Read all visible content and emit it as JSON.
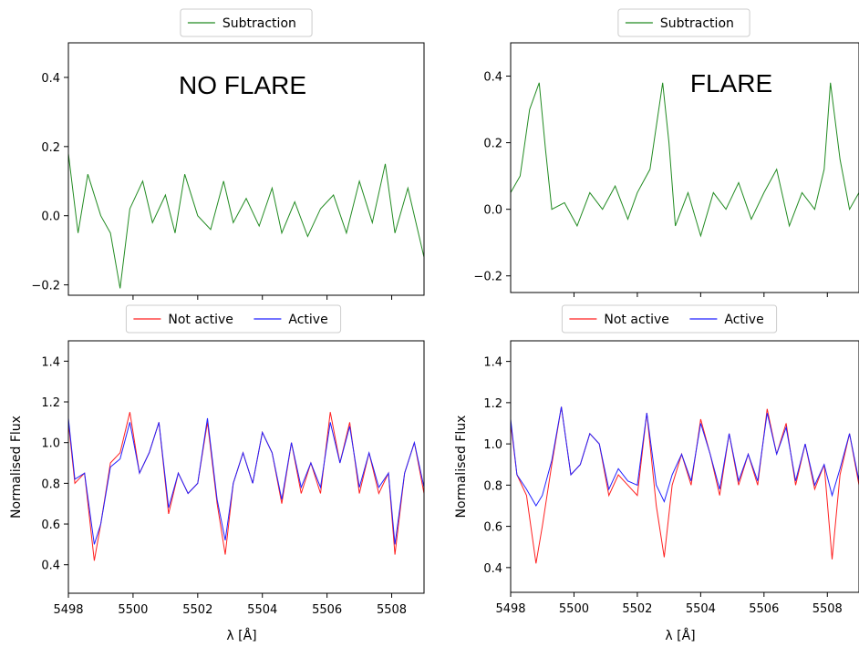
{
  "colors": {
    "subtraction": "#228B22",
    "not_active": "#ff2020",
    "active": "#2020ff"
  },
  "chart_data": [
    {
      "panel": "top-left",
      "type": "line",
      "annotation": "NO FLARE",
      "legend": [
        "Subtraction"
      ],
      "legend_placement": "top-center-outside",
      "xlim": [
        5498,
        5509
      ],
      "ylim": [
        -0.23,
        0.5
      ],
      "yticks": [
        -0.2,
        0.0,
        0.2,
        0.4
      ],
      "ytick_labels": [
        "−0.2",
        "0.0",
        "0.2",
        "0.4"
      ],
      "xticks": [
        5500,
        5502,
        5504,
        5506,
        5508
      ],
      "series": [
        {
          "name": "Subtraction",
          "color": "#228B22",
          "points": [
            [
              5498.0,
              0.18
            ],
            [
              5498.3,
              -0.05
            ],
            [
              5498.6,
              0.12
            ],
            [
              5499.0,
              0.0
            ],
            [
              5499.3,
              -0.05
            ],
            [
              5499.6,
              -0.21
            ],
            [
              5499.9,
              0.02
            ],
            [
              5500.3,
              0.1
            ],
            [
              5500.6,
              -0.02
            ],
            [
              5501.0,
              0.06
            ],
            [
              5501.3,
              -0.05
            ],
            [
              5501.6,
              0.12
            ],
            [
              5502.0,
              0.0
            ],
            [
              5502.4,
              -0.04
            ],
            [
              5502.8,
              0.1
            ],
            [
              5503.1,
              -0.02
            ],
            [
              5503.5,
              0.05
            ],
            [
              5503.9,
              -0.03
            ],
            [
              5504.3,
              0.08
            ],
            [
              5504.6,
              -0.05
            ],
            [
              5505.0,
              0.04
            ],
            [
              5505.4,
              -0.06
            ],
            [
              5505.8,
              0.02
            ],
            [
              5506.2,
              0.06
            ],
            [
              5506.6,
              -0.05
            ],
            [
              5507.0,
              0.1
            ],
            [
              5507.4,
              -0.02
            ],
            [
              5507.8,
              0.15
            ],
            [
              5508.1,
              -0.05
            ],
            [
              5508.5,
              0.08
            ],
            [
              5509.0,
              -0.12
            ]
          ]
        }
      ]
    },
    {
      "panel": "top-right",
      "type": "line",
      "annotation": "FLARE",
      "legend": [
        "Subtraction"
      ],
      "legend_placement": "top-center-outside",
      "xlim": [
        5498,
        5509
      ],
      "ylim": [
        -0.25,
        0.5
      ],
      "yticks": [
        -0.2,
        0.0,
        0.2,
        0.4
      ],
      "ytick_labels": [
        "−0.2",
        "0.0",
        "0.2",
        "0.4"
      ],
      "xticks": [
        5500,
        5502,
        5504,
        5506,
        5508
      ],
      "series": [
        {
          "name": "Subtraction",
          "color": "#228B22",
          "points": [
            [
              5498.0,
              0.05
            ],
            [
              5498.3,
              0.1
            ],
            [
              5498.6,
              0.3
            ],
            [
              5498.9,
              0.38
            ],
            [
              5499.1,
              0.18
            ],
            [
              5499.3,
              0.0
            ],
            [
              5499.7,
              0.02
            ],
            [
              5500.1,
              -0.05
            ],
            [
              5500.5,
              0.05
            ],
            [
              5500.9,
              0.0
            ],
            [
              5501.3,
              0.07
            ],
            [
              5501.7,
              -0.03
            ],
            [
              5502.0,
              0.05
            ],
            [
              5502.4,
              0.12
            ],
            [
              5502.8,
              0.38
            ],
            [
              5503.0,
              0.2
            ],
            [
              5503.2,
              -0.05
            ],
            [
              5503.6,
              0.05
            ],
            [
              5504.0,
              -0.08
            ],
            [
              5504.4,
              0.05
            ],
            [
              5504.8,
              0.0
            ],
            [
              5505.2,
              0.08
            ],
            [
              5505.6,
              -0.03
            ],
            [
              5506.0,
              0.05
            ],
            [
              5506.4,
              0.12
            ],
            [
              5506.8,
              -0.05
            ],
            [
              5507.2,
              0.05
            ],
            [
              5507.6,
              0.0
            ],
            [
              5507.9,
              0.12
            ],
            [
              5508.1,
              0.38
            ],
            [
              5508.4,
              0.15
            ],
            [
              5508.7,
              0.0
            ],
            [
              5509.0,
              0.05
            ]
          ]
        }
      ]
    },
    {
      "panel": "bottom-left",
      "type": "line",
      "legend": [
        "Not active",
        "Active"
      ],
      "legend_placement": "top-center-outside",
      "xlim": [
        5498,
        5509
      ],
      "ylim": [
        0.26,
        1.5
      ],
      "yticks": [
        0.4,
        0.6,
        0.8,
        1.0,
        1.2,
        1.4
      ],
      "ytick_labels": [
        "0.4",
        "0.6",
        "0.8",
        "1.0",
        "1.2",
        "1.4"
      ],
      "xticks": [
        5498,
        5500,
        5502,
        5504,
        5506,
        5508
      ],
      "xtick_labels": [
        "5498",
        "5500",
        "5502",
        "5504",
        "5506",
        "5508"
      ],
      "ylabel": "Normalised Flux",
      "xlabel": "λ  [Å]",
      "series": [
        {
          "name": "Not active",
          "color": "#ff2020",
          "points": [
            [
              5498.0,
              1.1
            ],
            [
              5498.2,
              0.8
            ],
            [
              5498.5,
              0.85
            ],
            [
              5498.8,
              0.42
            ],
            [
              5499.0,
              0.6
            ],
            [
              5499.3,
              0.9
            ],
            [
              5499.6,
              0.95
            ],
            [
              5499.9,
              1.15
            ],
            [
              5500.2,
              0.85
            ],
            [
              5500.5,
              0.95
            ],
            [
              5500.8,
              1.1
            ],
            [
              5501.1,
              0.65
            ],
            [
              5501.4,
              0.85
            ],
            [
              5501.7,
              0.75
            ],
            [
              5502.0,
              0.8
            ],
            [
              5502.3,
              1.1
            ],
            [
              5502.6,
              0.7
            ],
            [
              5502.85,
              0.45
            ],
            [
              5503.1,
              0.8
            ],
            [
              5503.4,
              0.95
            ],
            [
              5503.7,
              0.8
            ],
            [
              5504.0,
              1.05
            ],
            [
              5504.3,
              0.95
            ],
            [
              5504.6,
              0.7
            ],
            [
              5504.9,
              1.0
            ],
            [
              5505.2,
              0.75
            ],
            [
              5505.5,
              0.9
            ],
            [
              5505.8,
              0.75
            ],
            [
              5506.1,
              1.15
            ],
            [
              5506.4,
              0.9
            ],
            [
              5506.7,
              1.1
            ],
            [
              5507.0,
              0.75
            ],
            [
              5507.3,
              0.95
            ],
            [
              5507.6,
              0.75
            ],
            [
              5507.9,
              0.85
            ],
            [
              5508.1,
              0.45
            ],
            [
              5508.4,
              0.85
            ],
            [
              5508.7,
              1.0
            ],
            [
              5509.0,
              0.75
            ]
          ]
        },
        {
          "name": "Active",
          "color": "#2020ff",
          "points": [
            [
              5498.0,
              1.12
            ],
            [
              5498.2,
              0.82
            ],
            [
              5498.5,
              0.85
            ],
            [
              5498.8,
              0.5
            ],
            [
              5499.0,
              0.6
            ],
            [
              5499.3,
              0.88
            ],
            [
              5499.6,
              0.92
            ],
            [
              5499.9,
              1.1
            ],
            [
              5500.2,
              0.85
            ],
            [
              5500.5,
              0.95
            ],
            [
              5500.8,
              1.1
            ],
            [
              5501.1,
              0.68
            ],
            [
              5501.4,
              0.85
            ],
            [
              5501.7,
              0.75
            ],
            [
              5502.0,
              0.8
            ],
            [
              5502.3,
              1.12
            ],
            [
              5502.6,
              0.72
            ],
            [
              5502.85,
              0.52
            ],
            [
              5503.1,
              0.8
            ],
            [
              5503.4,
              0.95
            ],
            [
              5503.7,
              0.8
            ],
            [
              5504.0,
              1.05
            ],
            [
              5504.3,
              0.95
            ],
            [
              5504.6,
              0.72
            ],
            [
              5504.9,
              1.0
            ],
            [
              5505.2,
              0.78
            ],
            [
              5505.5,
              0.9
            ],
            [
              5505.8,
              0.78
            ],
            [
              5506.1,
              1.1
            ],
            [
              5506.4,
              0.9
            ],
            [
              5506.7,
              1.08
            ],
            [
              5507.0,
              0.78
            ],
            [
              5507.3,
              0.95
            ],
            [
              5507.6,
              0.78
            ],
            [
              5507.9,
              0.85
            ],
            [
              5508.1,
              0.5
            ],
            [
              5508.4,
              0.85
            ],
            [
              5508.7,
              1.0
            ],
            [
              5509.0,
              0.78
            ]
          ]
        }
      ]
    },
    {
      "panel": "bottom-right",
      "type": "line",
      "legend": [
        "Not active",
        "Active"
      ],
      "legend_placement": "top-center-outside",
      "xlim": [
        5498,
        5509
      ],
      "ylim": [
        0.28,
        1.5
      ],
      "yticks": [
        0.4,
        0.6,
        0.8,
        1.0,
        1.2,
        1.4
      ],
      "ytick_labels": [
        "0.4",
        "0.6",
        "0.8",
        "1.0",
        "1.2",
        "1.4"
      ],
      "xticks": [
        5498,
        5500,
        5502,
        5504,
        5506,
        5508
      ],
      "xtick_labels": [
        "5498",
        "5500",
        "5502",
        "5504",
        "5506",
        "5508"
      ],
      "ylabel": "Normalised Flux",
      "xlabel": "λ  [Å]",
      "series": [
        {
          "name": "Not active",
          "color": "#ff2020",
          "points": [
            [
              5498.0,
              1.1
            ],
            [
              5498.2,
              0.85
            ],
            [
              5498.5,
              0.75
            ],
            [
              5498.8,
              0.42
            ],
            [
              5499.0,
              0.6
            ],
            [
              5499.3,
              0.9
            ],
            [
              5499.6,
              1.18
            ],
            [
              5499.9,
              0.85
            ],
            [
              5500.2,
              0.9
            ],
            [
              5500.5,
              1.05
            ],
            [
              5500.8,
              1.0
            ],
            [
              5501.1,
              0.75
            ],
            [
              5501.4,
              0.85
            ],
            [
              5501.7,
              0.8
            ],
            [
              5502.0,
              0.75
            ],
            [
              5502.3,
              1.15
            ],
            [
              5502.6,
              0.7
            ],
            [
              5502.85,
              0.45
            ],
            [
              5503.1,
              0.8
            ],
            [
              5503.4,
              0.95
            ],
            [
              5503.7,
              0.8
            ],
            [
              5504.0,
              1.12
            ],
            [
              5504.3,
              0.95
            ],
            [
              5504.6,
              0.75
            ],
            [
              5504.9,
              1.05
            ],
            [
              5505.2,
              0.8
            ],
            [
              5505.5,
              0.95
            ],
            [
              5505.8,
              0.8
            ],
            [
              5506.1,
              1.17
            ],
            [
              5506.4,
              0.95
            ],
            [
              5506.7,
              1.1
            ],
            [
              5507.0,
              0.8
            ],
            [
              5507.3,
              1.0
            ],
            [
              5507.6,
              0.78
            ],
            [
              5507.9,
              0.9
            ],
            [
              5508.15,
              0.44
            ],
            [
              5508.4,
              0.85
            ],
            [
              5508.7,
              1.05
            ],
            [
              5509.0,
              0.8
            ]
          ]
        },
        {
          "name": "Active",
          "color": "#2020ff",
          "points": [
            [
              5498.0,
              1.12
            ],
            [
              5498.2,
              0.85
            ],
            [
              5498.5,
              0.78
            ],
            [
              5498.8,
              0.7
            ],
            [
              5499.0,
              0.75
            ],
            [
              5499.3,
              0.92
            ],
            [
              5499.6,
              1.18
            ],
            [
              5499.9,
              0.85
            ],
            [
              5500.2,
              0.9
            ],
            [
              5500.5,
              1.05
            ],
            [
              5500.8,
              1.0
            ],
            [
              5501.1,
              0.78
            ],
            [
              5501.4,
              0.88
            ],
            [
              5501.7,
              0.82
            ],
            [
              5502.0,
              0.8
            ],
            [
              5502.3,
              1.15
            ],
            [
              5502.6,
              0.8
            ],
            [
              5502.85,
              0.72
            ],
            [
              5503.1,
              0.85
            ],
            [
              5503.4,
              0.95
            ],
            [
              5503.7,
              0.82
            ],
            [
              5504.0,
              1.1
            ],
            [
              5504.3,
              0.95
            ],
            [
              5504.6,
              0.78
            ],
            [
              5504.9,
              1.05
            ],
            [
              5505.2,
              0.82
            ],
            [
              5505.5,
              0.95
            ],
            [
              5505.8,
              0.82
            ],
            [
              5506.1,
              1.15
            ],
            [
              5506.4,
              0.95
            ],
            [
              5506.7,
              1.08
            ],
            [
              5507.0,
              0.82
            ],
            [
              5507.3,
              1.0
            ],
            [
              5507.6,
              0.8
            ],
            [
              5507.9,
              0.9
            ],
            [
              5508.15,
              0.75
            ],
            [
              5508.4,
              0.88
            ],
            [
              5508.7,
              1.05
            ],
            [
              5509.0,
              0.82
            ]
          ]
        }
      ]
    }
  ]
}
